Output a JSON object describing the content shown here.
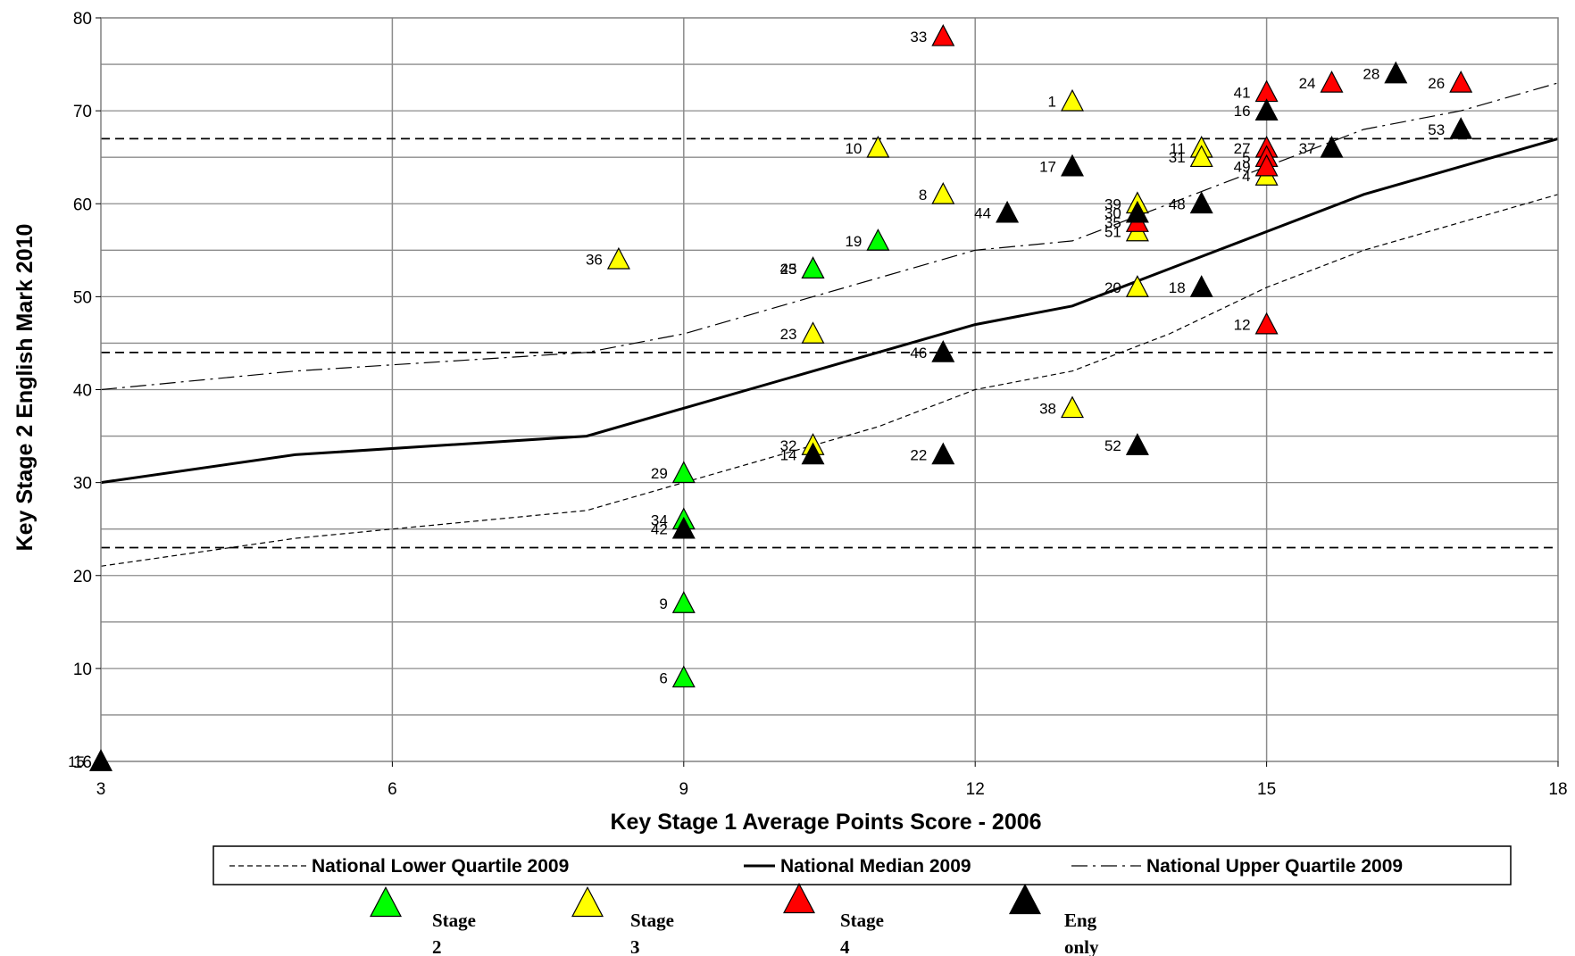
{
  "chart_data": {
    "type": "scatter",
    "title": "",
    "xlabel": "Key Stage 1 Average Points Score - 2006",
    "ylabel": "Key Stage 2 English Mark 2010",
    "xlim": [
      3,
      18
    ],
    "ylim": [
      0,
      80
    ],
    "x_ticks": [
      "3",
      "6",
      "9",
      "12",
      "15",
      "18"
    ],
    "y_ticks": [
      "80",
      "70",
      "60",
      "50",
      "40",
      "30",
      "20",
      "10"
    ],
    "y_zero_tick": "16",
    "grid": true,
    "horizontal_reference_lines": [
      67,
      44,
      23
    ],
    "lines": [
      {
        "name": "National Lower Quartile 2009",
        "style": "short-dash",
        "x": [
          3,
          5,
          8,
          9,
          11,
          12,
          13,
          14,
          15,
          16,
          17,
          18
        ],
        "y": [
          21,
          24,
          27,
          30,
          36,
          40,
          42,
          46,
          51,
          55,
          58,
          61
        ]
      },
      {
        "name": "National Median 2009",
        "style": "solid",
        "x": [
          3,
          5,
          8,
          9,
          11,
          12,
          13,
          14,
          15,
          16,
          17,
          18
        ],
        "y": [
          30,
          33,
          35,
          38,
          44,
          47,
          49,
          53,
          57,
          61,
          64,
          67
        ]
      },
      {
        "name": "National Upper Quartile 2009",
        "style": "dash-dot",
        "x": [
          3,
          5,
          8,
          9,
          11,
          12,
          13,
          14,
          15,
          16,
          17,
          18
        ],
        "y": [
          40,
          42,
          44,
          46,
          52,
          55,
          56,
          60,
          64,
          68,
          70,
          73
        ]
      }
    ],
    "series": [
      {
        "name": "Stage 2",
        "color": "#00ff00",
        "points": [
          {
            "label": "6",
            "x": 9,
            "y": 9
          },
          {
            "label": "9",
            "x": 9,
            "y": 17
          },
          {
            "label": "34",
            "x": 9,
            "y": 26
          },
          {
            "label": "29",
            "x": 9,
            "y": 31
          },
          {
            "label": "19",
            "x": 11,
            "y": 56
          },
          {
            "label": "25",
            "x": 10.33,
            "y": 53
          },
          {
            "label": "43",
            "x": 10.33,
            "y": 53
          }
        ]
      },
      {
        "name": "Stage 3",
        "color": "#ffff00",
        "points": [
          {
            "label": "36",
            "x": 8.33,
            "y": 54
          },
          {
            "label": "23",
            "x": 10.33,
            "y": 46
          },
          {
            "label": "32",
            "x": 10.33,
            "y": 34
          },
          {
            "label": "10",
            "x": 11,
            "y": 66
          },
          {
            "label": "8",
            "x": 11.67,
            "y": 61
          },
          {
            "label": "1",
            "x": 13,
            "y": 71
          },
          {
            "label": "38",
            "x": 13,
            "y": 38
          },
          {
            "label": "39",
            "x": 13.67,
            "y": 60
          },
          {
            "label": "51",
            "x": 13.67,
            "y": 57
          },
          {
            "label": "20",
            "x": 13.67,
            "y": 51
          },
          {
            "label": "11",
            "x": 14.33,
            "y": 66
          },
          {
            "label": "31",
            "x": 14.33,
            "y": 65
          },
          {
            "label": "4",
            "x": 15,
            "y": 63
          }
        ]
      },
      {
        "name": "Stage 4",
        "color": "#ff0000",
        "points": [
          {
            "label": "33",
            "x": 11.67,
            "y": 78
          },
          {
            "label": "35",
            "x": 13.67,
            "y": 58
          },
          {
            "label": "41",
            "x": 15,
            "y": 72
          },
          {
            "label": "27",
            "x": 15,
            "y": 66
          },
          {
            "label": "5",
            "x": 15,
            "y": 65
          },
          {
            "label": "49",
            "x": 15,
            "y": 64
          },
          {
            "label": "12",
            "x": 15,
            "y": 47
          },
          {
            "label": "24",
            "x": 15.67,
            "y": 73
          },
          {
            "label": "26",
            "x": 17,
            "y": 73
          }
        ]
      },
      {
        "name": "Eng only",
        "color": "#000000",
        "points": [
          {
            "label": "15",
            "x": 3,
            "y": 0
          },
          {
            "label": "42",
            "x": 9,
            "y": 25
          },
          {
            "label": "14",
            "x": 10.33,
            "y": 33
          },
          {
            "label": "46",
            "x": 11.67,
            "y": 44
          },
          {
            "label": "22",
            "x": 11.67,
            "y": 33
          },
          {
            "label": "44",
            "x": 12.33,
            "y": 59
          },
          {
            "label": "17",
            "x": 13,
            "y": 64
          },
          {
            "label": "30",
            "x": 13.67,
            "y": 59
          },
          {
            "label": "52",
            "x": 13.67,
            "y": 34
          },
          {
            "label": "48",
            "x": 14.33,
            "y": 60
          },
          {
            "label": "18",
            "x": 14.33,
            "y": 51
          },
          {
            "label": "16",
            "x": 15,
            "y": 70
          },
          {
            "label": "37",
            "x": 15.67,
            "y": 66
          },
          {
            "label": "28",
            "x": 16.33,
            "y": 74
          },
          {
            "label": "53",
            "x": 17,
            "y": 68
          }
        ]
      }
    ],
    "legend_lines": [
      "National Lower Quartile 2009",
      "National Median 2009",
      "National Upper Quartile 2009"
    ],
    "legend_markers": [
      {
        "lines": [
          "Stage",
          "2"
        ],
        "color": "#00ff00"
      },
      {
        "lines": [
          "Stage",
          "3"
        ],
        "color": "#ffff00"
      },
      {
        "lines": [
          "Stage",
          "4"
        ],
        "color": "#ff0000"
      },
      {
        "lines": [
          "Eng",
          "only"
        ],
        "color": "#000000"
      }
    ]
  }
}
